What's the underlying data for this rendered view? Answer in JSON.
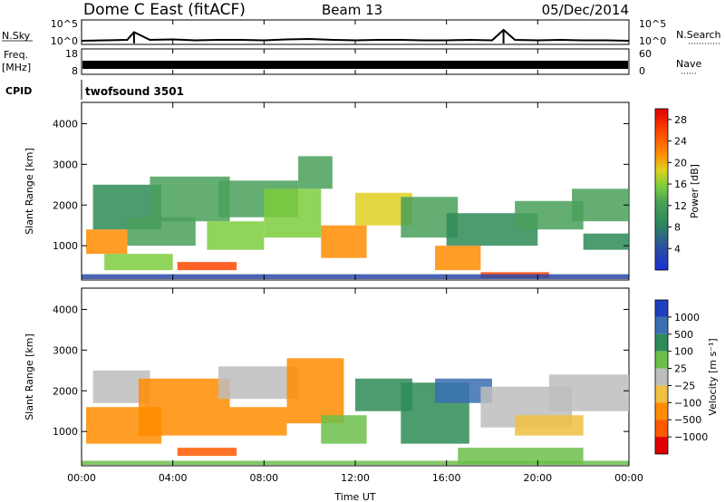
{
  "header": {
    "station": "Dome C East (fitACF)",
    "beam": "Beam 13",
    "date": "05/Dec/2014"
  },
  "left_labels": {
    "nsky": "N.Sky",
    "freq": "Freq.",
    "freq_unit": "[MHz]",
    "cpid": "CPID"
  },
  "right_labels": {
    "nsearch": "N.Search",
    "nave": "Nave"
  },
  "cpid_value": "twofsound 3501",
  "colors": {
    "power": [
      "#1a2fd6",
      "#2a4aa8",
      "#2e8b57",
      "#4aa05a",
      "#7ccd3c",
      "#e0d020",
      "#ff8c00",
      "#ff4500",
      "#e00000"
    ],
    "velocity": [
      "#1e3fbf",
      "#3a6fb0",
      "#2e8b57",
      "#6cc04a",
      "#bdbdbd",
      "#f0c040",
      "#ff8c00",
      "#ff5a00",
      "#e00000"
    ]
  },
  "chart_data": [
    {
      "type": "line",
      "name": "N.Sky / N.Search",
      "left_ticks": [
        "10^5",
        "10^0"
      ],
      "right_ticks": [
        "10^5",
        "10^0"
      ],
      "ylim_log": [
        0,
        5
      ],
      "x": [
        0,
        1,
        2,
        2.3,
        3,
        4,
        5,
        6,
        7,
        8,
        9,
        10,
        11,
        12,
        13,
        14,
        15,
        16,
        17,
        18,
        18.5,
        19,
        20,
        21,
        22,
        23,
        24
      ],
      "values": [
        0.6,
        0.7,
        0.8,
        2.5,
        0.8,
        0.9,
        0.7,
        0.8,
        0.8,
        0.7,
        0.9,
        1.0,
        0.8,
        0.7,
        0.8,
        0.8,
        0.7,
        0.7,
        0.8,
        0.7,
        3.0,
        0.8,
        0.7,
        0.8,
        0.7,
        0.7,
        0.6
      ]
    },
    {
      "type": "area",
      "name": "Freq / Nave",
      "left_ticks": [
        "18",
        "8"
      ],
      "right_ticks": [
        "60",
        "0"
      ],
      "ylim_left": [
        8,
        18
      ],
      "ylim_right": [
        0,
        60
      ],
      "x": [
        0,
        24
      ],
      "nave_level": 22
    },
    {
      "type": "heatmap",
      "name": "Power",
      "ylabel": "Slant Range [km]",
      "yticks": [
        "4000",
        "3000",
        "2000",
        "1000"
      ],
      "ylim": [
        180,
        4500
      ],
      "colorbar_label": "Power [dB]",
      "colorbar_ticks": [
        "28",
        "24",
        "20",
        "16",
        "12",
        "8",
        "4"
      ],
      "colorbar_range": [
        0,
        30
      ],
      "regions": [
        {
          "t0": 0.2,
          "t1": 2.0,
          "r0": 800,
          "r1": 1400,
          "v": 20
        },
        {
          "t0": 0.5,
          "t1": 3.5,
          "r0": 1400,
          "r1": 2500,
          "v": 8
        },
        {
          "t0": 1.0,
          "t1": 4.0,
          "r0": 400,
          "r1": 800,
          "v": 14
        },
        {
          "t0": 2.0,
          "t1": 5.0,
          "r0": 1000,
          "r1": 1700,
          "v": 10
        },
        {
          "t0": 3.0,
          "t1": 6.5,
          "r0": 1600,
          "r1": 2700,
          "v": 12
        },
        {
          "t0": 4.2,
          "t1": 6.8,
          "r0": 400,
          "r1": 600,
          "v": 24
        },
        {
          "t0": 5.5,
          "t1": 8.0,
          "r0": 900,
          "r1": 1600,
          "v": 16
        },
        {
          "t0": 6.0,
          "t1": 9.5,
          "r0": 1700,
          "r1": 2600,
          "v": 10
        },
        {
          "t0": 8.0,
          "t1": 10.5,
          "r0": 1200,
          "r1": 2400,
          "v": 14
        },
        {
          "t0": 9.5,
          "t1": 11.0,
          "r0": 2400,
          "r1": 3200,
          "v": 10
        },
        {
          "t0": 10.5,
          "t1": 12.5,
          "r0": 700,
          "r1": 1500,
          "v": 20
        },
        {
          "t0": 12.0,
          "t1": 14.5,
          "r0": 1500,
          "r1": 2300,
          "v": 18
        },
        {
          "t0": 14.0,
          "t1": 16.5,
          "r0": 1200,
          "r1": 2200,
          "v": 12
        },
        {
          "t0": 15.5,
          "t1": 17.5,
          "r0": 400,
          "r1": 1000,
          "v": 20
        },
        {
          "t0": 16.0,
          "t1": 20.0,
          "r0": 1000,
          "r1": 1800,
          "v": 8
        },
        {
          "t0": 17.5,
          "t1": 20.5,
          "r0": 200,
          "r1": 350,
          "v": 26
        },
        {
          "t0": 19.0,
          "t1": 22.0,
          "r0": 1400,
          "r1": 2100,
          "v": 12
        },
        {
          "t0": 21.5,
          "t1": 24.0,
          "r0": 1600,
          "r1": 2400,
          "v": 10
        },
        {
          "t0": 22.0,
          "t1": 24.0,
          "r0": 900,
          "r1": 1300,
          "v": 8
        },
        {
          "t0": 0.0,
          "t1": 24.0,
          "r0": 180,
          "r1": 300,
          "v": 6
        }
      ]
    },
    {
      "type": "heatmap",
      "name": "Velocity",
      "ylabel": "Slant Range [km]",
      "yticks": [
        "4000",
        "3000",
        "2000",
        "1000"
      ],
      "ylim": [
        180,
        4500
      ],
      "colorbar_label": "Velocity [m s⁻¹]",
      "colorbar_ticks": [
        "1000",
        "500",
        "100",
        "25",
        "−25",
        "−100",
        "−500",
        "−1000"
      ],
      "regions": [
        {
          "t0": 0.2,
          "t1": 3.5,
          "r0": 700,
          "r1": 1600,
          "v": -300
        },
        {
          "t0": 0.5,
          "t1": 3.0,
          "r0": 1700,
          "r1": 2500,
          "v": 0
        },
        {
          "t0": 2.5,
          "t1": 6.5,
          "r0": 900,
          "r1": 2300,
          "v": -300
        },
        {
          "t0": 4.2,
          "t1": 6.8,
          "r0": 400,
          "r1": 600,
          "v": -600
        },
        {
          "t0": 6.0,
          "t1": 9.5,
          "r0": 1800,
          "r1": 2600,
          "v": 0
        },
        {
          "t0": 6.5,
          "t1": 9.0,
          "r0": 900,
          "r1": 1600,
          "v": -250
        },
        {
          "t0": 9.0,
          "t1": 11.5,
          "r0": 1200,
          "r1": 2800,
          "v": -150
        },
        {
          "t0": 10.5,
          "t1": 12.5,
          "r0": 700,
          "r1": 1400,
          "v": 60
        },
        {
          "t0": 12.0,
          "t1": 14.5,
          "r0": 1500,
          "r1": 2300,
          "v": 200
        },
        {
          "t0": 14.0,
          "t1": 17.0,
          "r0": 700,
          "r1": 2200,
          "v": 120
        },
        {
          "t0": 15.5,
          "t1": 18.0,
          "r0": 1700,
          "r1": 2300,
          "v": 600
        },
        {
          "t0": 17.5,
          "t1": 21.5,
          "r0": 1100,
          "r1": 2100,
          "v": 0
        },
        {
          "t0": 20.5,
          "t1": 24.0,
          "r0": 1500,
          "r1": 2400,
          "v": 0
        },
        {
          "t0": 19.0,
          "t1": 22.0,
          "r0": 900,
          "r1": 1400,
          "v": -50
        },
        {
          "t0": 16.5,
          "t1": 22.0,
          "r0": 200,
          "r1": 600,
          "v": 60
        },
        {
          "t0": 0.0,
          "t1": 24.0,
          "r0": 180,
          "r1": 280,
          "v": 60
        }
      ]
    }
  ],
  "xaxis": {
    "ticks": [
      "00:00",
      "04:00",
      "08:00",
      "12:00",
      "16:00",
      "20:00",
      "00:00"
    ],
    "label": "Time UT"
  }
}
